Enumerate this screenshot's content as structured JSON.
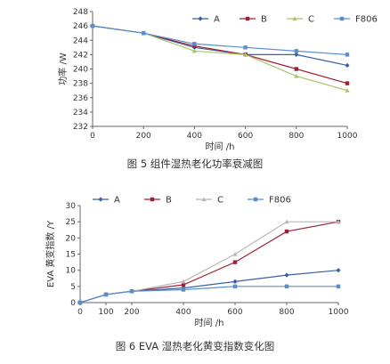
{
  "chart_data": [
    {
      "type": "line",
      "caption": "图 5 组件湿热老化功率衰减图",
      "xlabel": "时间 /h",
      "ylabel": "功率 /W",
      "x": [
        0,
        200,
        400,
        600,
        800,
        1000
      ],
      "xlim": [
        0,
        1000
      ],
      "xticks": [
        0,
        200,
        400,
        600,
        800,
        1000
      ],
      "ylim": [
        232,
        248
      ],
      "yticks": [
        232,
        234,
        236,
        238,
        240,
        242,
        244,
        246,
        248
      ],
      "grid": false,
      "legend_position": "top-right",
      "series": [
        {
          "name": "A",
          "marker": "diamond",
          "color": "#3a5fa8",
          "values": [
            246,
            245,
            243,
            242,
            242,
            240.5
          ]
        },
        {
          "name": "B",
          "marker": "square",
          "color": "#9b2335",
          "values": [
            246,
            245,
            243.2,
            242,
            240,
            238
          ]
        },
        {
          "name": "C",
          "marker": "triangle",
          "color": "#a8c46a",
          "values": [
            246,
            245,
            242.5,
            242,
            239,
            237
          ]
        },
        {
          "name": "F806",
          "marker": "square",
          "color": "#5a8ed0",
          "values": [
            246,
            245,
            243.5,
            243,
            242.5,
            242
          ]
        }
      ]
    },
    {
      "type": "line",
      "caption": "图 6 EVA 湿热老化黄变指数变化图",
      "xlabel": "时间 /h",
      "ylabel": "EVA 黄变指数 /Y",
      "x": [
        0,
        100,
        200,
        400,
        600,
        800,
        1000
      ],
      "xlim": [
        0,
        1000
      ],
      "xticks": [
        0,
        100,
        200,
        400,
        600,
        800,
        1000
      ],
      "ylim": [
        0,
        30
      ],
      "yticks": [
        0,
        5,
        10,
        15,
        20,
        25,
        30
      ],
      "grid": false,
      "legend_position": "top",
      "series": [
        {
          "name": "A",
          "marker": "diamond",
          "color": "#3a5fa8",
          "values": [
            0,
            2.5,
            3.5,
            4.5,
            6.5,
            8.5,
            10
          ]
        },
        {
          "name": "B",
          "marker": "square",
          "color": "#9b2335",
          "values": [
            0,
            2.5,
            3.5,
            5.5,
            12.5,
            22,
            25
          ]
        },
        {
          "name": "C",
          "marker": "triangle",
          "color": "#b8b8b8",
          "values": [
            0,
            2.5,
            3.5,
            6.5,
            15,
            25,
            25
          ]
        },
        {
          "name": "F806",
          "marker": "square",
          "color": "#5a8ed0",
          "values": [
            0,
            2.5,
            3.5,
            4,
            5,
            5,
            5
          ]
        }
      ]
    }
  ]
}
